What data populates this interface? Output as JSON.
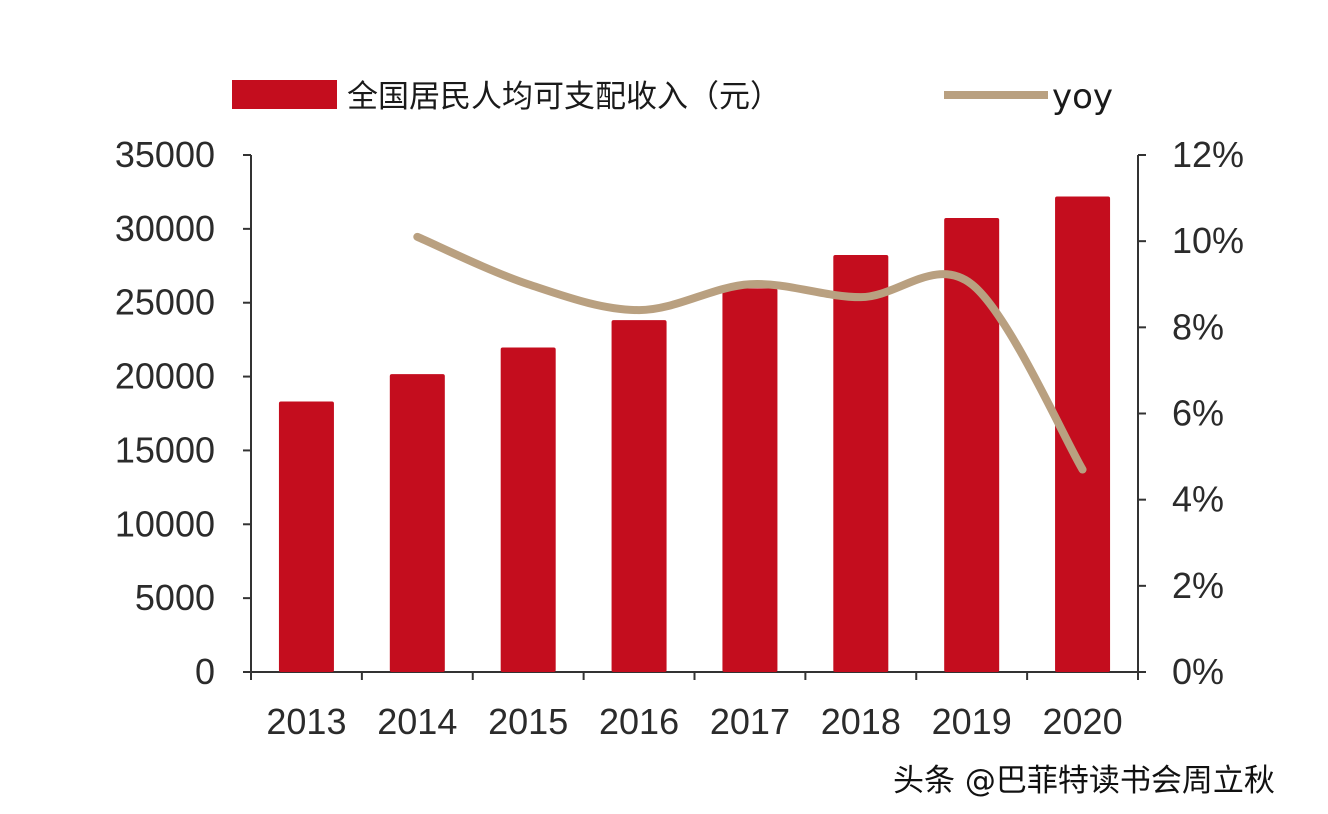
{
  "chart_data": {
    "type": "bar",
    "categories": [
      "2013",
      "2014",
      "2015",
      "2016",
      "2017",
      "2018",
      "2019",
      "2020"
    ],
    "series": [
      {
        "name": "全国居民人均可支配收入（元）",
        "type": "bar",
        "axis": "left",
        "color": "#c40d1e",
        "values": [
          18311,
          20167,
          21966,
          23821,
          25974,
          28228,
          30733,
          32189
        ]
      },
      {
        "name": "yoy",
        "type": "line",
        "axis": "right",
        "color": "#b9a080",
        "values": [
          null,
          10.1,
          9.0,
          8.4,
          9.0,
          8.7,
          9.0,
          4.7
        ]
      }
    ],
    "y_left": {
      "min": 0,
      "max": 35000,
      "ticks": [
        "0",
        "5000",
        "10000",
        "15000",
        "20000",
        "25000",
        "30000",
        "35000"
      ]
    },
    "y_right": {
      "min": 0,
      "max": 12,
      "ticks": [
        "0%",
        "2%",
        "4%",
        "6%",
        "8%",
        "10%",
        "12%"
      ]
    },
    "legend_position": "top",
    "grid": false
  },
  "watermark": "头条 @巴菲特读书会周立秋"
}
